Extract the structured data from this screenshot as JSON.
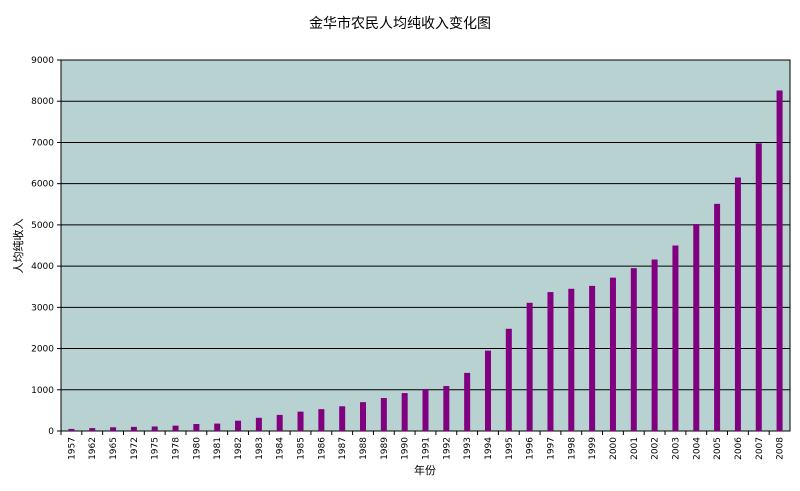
{
  "chart_data": {
    "type": "bar",
    "title": "金华市农民人均纯收入变化图",
    "xlabel": "年份",
    "ylabel": "人均纯收入",
    "ylim": [
      0,
      9000
    ],
    "yticks": [
      0,
      1000,
      2000,
      3000,
      4000,
      5000,
      6000,
      7000,
      8000,
      9000
    ],
    "grid": true,
    "legend": "none",
    "colors": {
      "plot_bg": "#b8d1d1",
      "bar": "#800080",
      "grid": "#000000"
    },
    "categories": [
      "1957",
      "1962",
      "1965",
      "1972",
      "1975",
      "1978",
      "1980",
      "1981",
      "1982",
      "1983",
      "1984",
      "1985",
      "1986",
      "1987",
      "1988",
      "1989",
      "1990",
      "1991",
      "1992",
      "1993",
      "1994",
      "1995",
      "1996",
      "1997",
      "1998",
      "1999",
      "2000",
      "2001",
      "2002",
      "2003",
      "2004",
      "2005",
      "2006",
      "2007",
      "2008"
    ],
    "values": [
      50,
      70,
      90,
      100,
      110,
      130,
      170,
      180,
      250,
      320,
      390,
      470,
      530,
      600,
      700,
      800,
      920,
      1020,
      1090,
      1410,
      1950,
      2480,
      3110,
      3370,
      3450,
      3520,
      3720,
      3950,
      4160,
      4500,
      5020,
      5510,
      6150,
      6980,
      8260
    ]
  }
}
